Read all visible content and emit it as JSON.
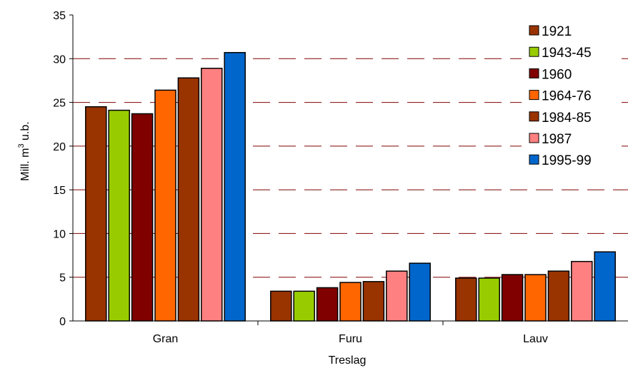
{
  "chart_data": {
    "type": "bar",
    "categories": [
      "Gran",
      "Furu",
      "Lauv"
    ],
    "series": [
      {
        "name": "1921",
        "color": "#993300",
        "values": [
          24.5,
          3.4,
          4.9
        ]
      },
      {
        "name": "1943-45",
        "color": "#99CC00",
        "values": [
          24.1,
          3.4,
          4.9
        ]
      },
      {
        "name": "1960",
        "color": "#800000",
        "values": [
          23.7,
          3.8,
          5.3
        ]
      },
      {
        "name": "1964-76",
        "color": "#FF6600",
        "values": [
          26.4,
          4.4,
          5.3
        ]
      },
      {
        "name": "1984-85",
        "color": "#993300",
        "values": [
          27.8,
          4.5,
          5.7
        ]
      },
      {
        "name": "1987",
        "color": "#FF8080",
        "values": [
          28.9,
          5.7,
          6.8
        ]
      },
      {
        "name": "1995-99",
        "color": "#0066CC",
        "values": [
          30.7,
          6.6,
          7.9
        ]
      }
    ],
    "xlabel": "Treslag",
    "ylabel_main": "Mill. m",
    "ylabel_sup": "3",
    "ylabel_tail": " u.b.",
    "ylim": [
      0,
      35
    ],
    "yticks": [
      0,
      5,
      10,
      15,
      20,
      25,
      30,
      35
    ],
    "grid": true,
    "grid_color": "#800000",
    "legend_position": "right"
  }
}
